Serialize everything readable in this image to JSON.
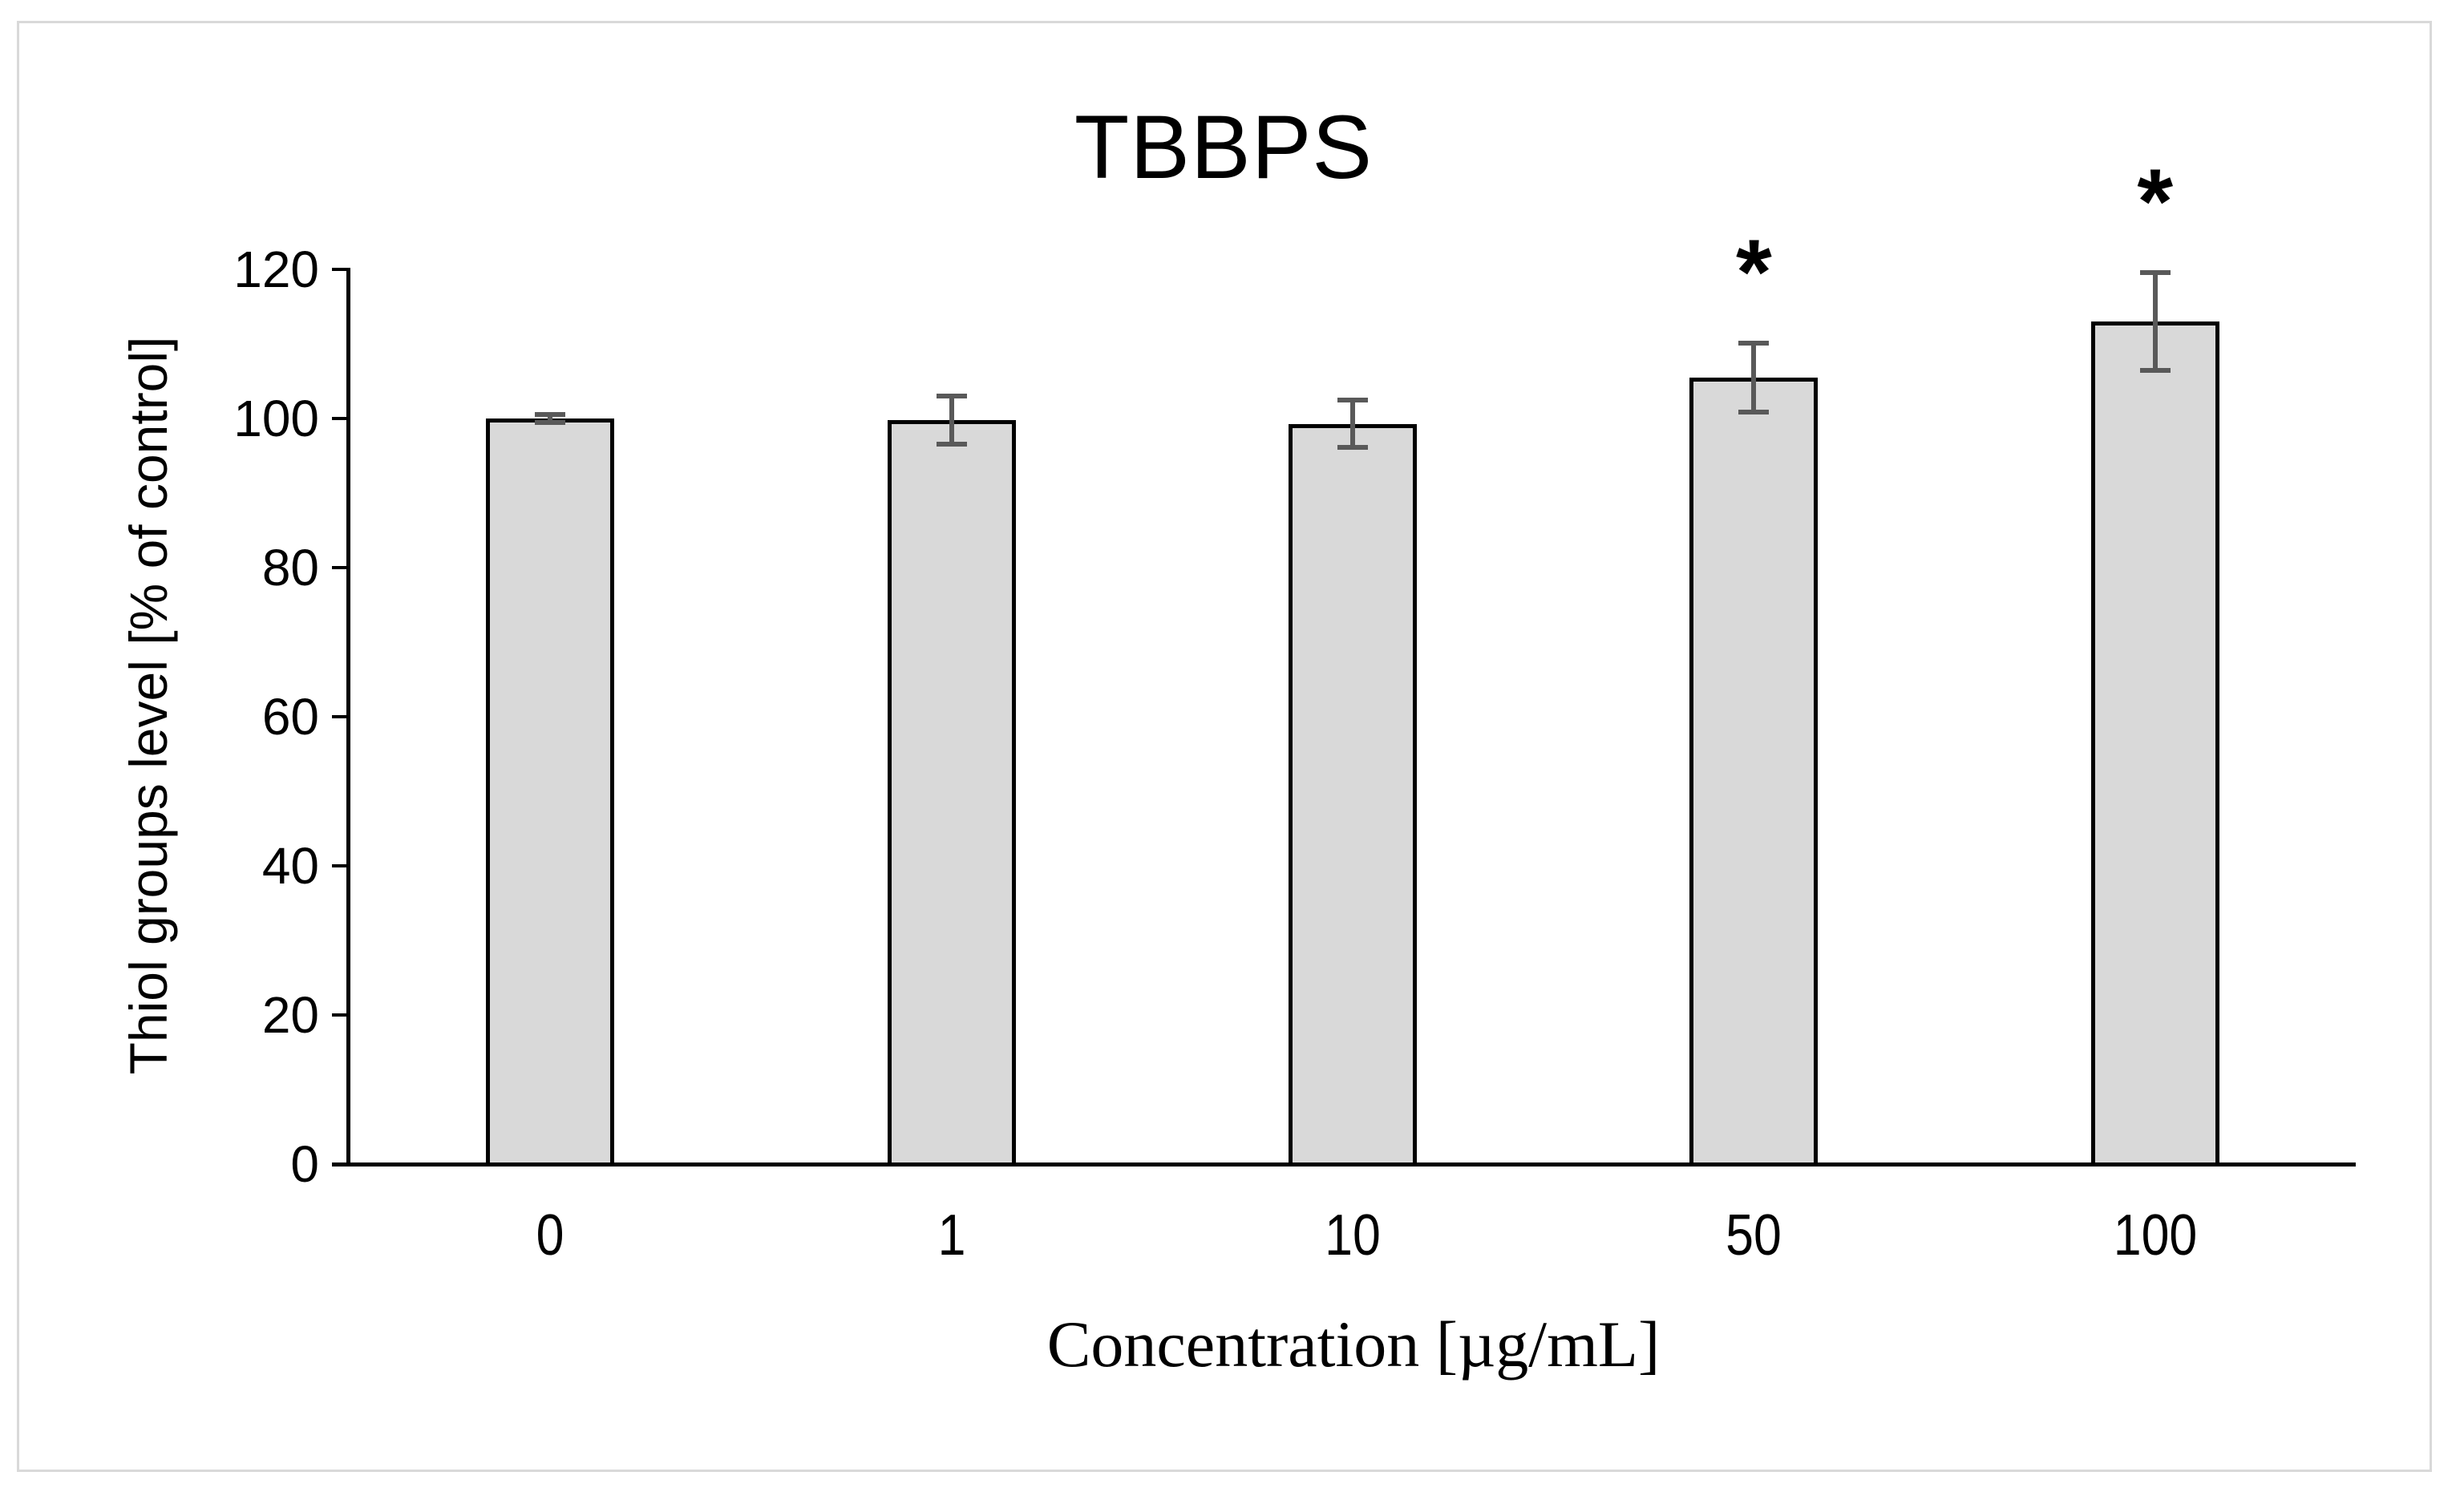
{
  "figure": {
    "title": "TBBPS",
    "x_axis_label": "Concentration [µg/mL]",
    "y_axis_label": "Thiol groups level [% of control]",
    "border_color": "#d9d9d9"
  },
  "chart_data": {
    "type": "bar",
    "title": "TBBPS",
    "xlabel": "Concentration [µg/mL]",
    "ylabel": "Thiol groups level [% of control]",
    "categories": [
      "0",
      "1",
      "10",
      "50",
      "100"
    ],
    "values": [
      100,
      99.8,
      99.3,
      105.5,
      113
    ],
    "error_bars": [
      0.5,
      3.2,
      3.2,
      4.6,
      6.6
    ],
    "significance_markers": [
      "",
      "",
      "",
      "*",
      "*"
    ],
    "yticks": [
      0,
      20,
      40,
      60,
      80,
      100,
      120
    ],
    "ylim": [
      0,
      120
    ],
    "grid": false,
    "legend": false,
    "colors": {
      "bar_fill": "#d9d9d9",
      "bar_border": "#000000",
      "error_bar": "#595959",
      "axis": "#000000"
    }
  }
}
